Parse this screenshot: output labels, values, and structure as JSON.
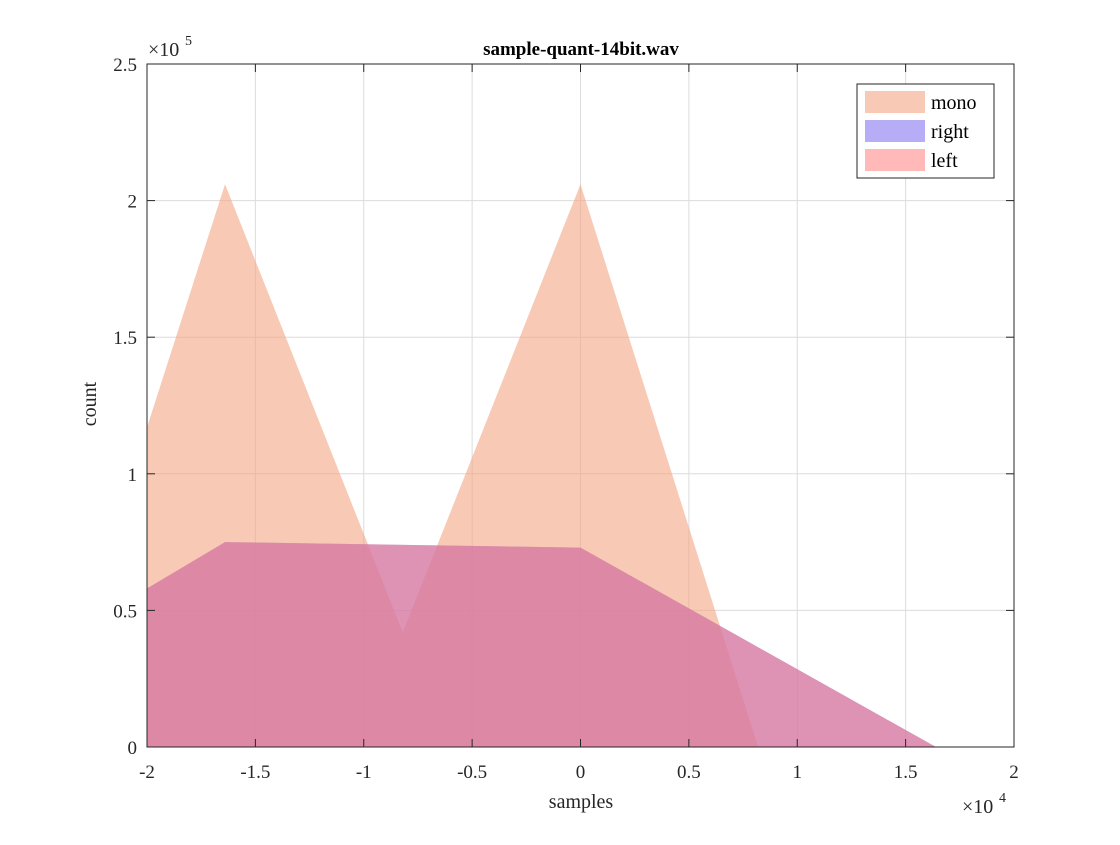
{
  "chart_data": {
    "type": "area",
    "title": "sample-quant-14bit.wav",
    "xlabel": "samples",
    "ylabel": "count",
    "xlim": [
      -20000,
      20000
    ],
    "ylim": [
      0,
      250000
    ],
    "x_ticks": [
      -20000,
      -15000,
      -10000,
      -5000,
      0,
      5000,
      10000,
      15000,
      20000
    ],
    "x_tick_labels": [
      "-2",
      "-1.5",
      "-1",
      "-0.5",
      "0",
      "0.5",
      "1",
      "1.5",
      "2"
    ],
    "x_exponent": {
      "base": "×10",
      "power": "4"
    },
    "y_ticks": [
      0,
      50000,
      100000,
      150000,
      200000,
      250000
    ],
    "y_tick_labels": [
      "0",
      "0.5",
      "1",
      "1.5",
      "2",
      "2.5"
    ],
    "y_exponent": {
      "base": "×10",
      "power": "5"
    },
    "grid": true,
    "legend_position": "top-right",
    "series": [
      {
        "name": "mono",
        "color": "#f4a582",
        "opacity": 0.6,
        "x": [
          -20000,
          -16400,
          -8200,
          0,
          8200
        ],
        "y": [
          117000,
          206000,
          42000,
          206000,
          0
        ]
      },
      {
        "name": "right",
        "color": "#7b68ee",
        "opacity": 0.55,
        "x": [
          -20000,
          -16400,
          0,
          16400
        ],
        "y": [
          58000,
          75000,
          73000,
          0
        ]
      },
      {
        "name": "left",
        "color": "#ff8080",
        "opacity": 0.55,
        "x": [
          -20000,
          -16400,
          0,
          16400
        ],
        "y": [
          58000,
          75000,
          73000,
          0
        ]
      }
    ]
  }
}
